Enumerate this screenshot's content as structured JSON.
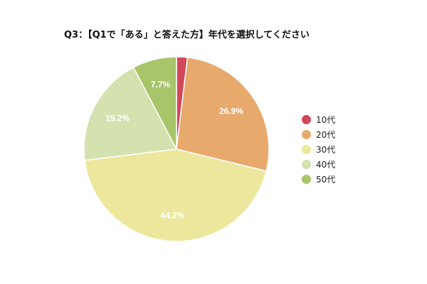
{
  "chart_data": {
    "type": "pie",
    "title": "Q3：【Q1で「ある」と答えた方】年代を選択してください",
    "categories": [
      "10代",
      "20代",
      "30代",
      "40代",
      "50代"
    ],
    "values": [
      1.9,
      26.9,
      44.2,
      19.2,
      7.7
    ],
    "value_labels": [
      "",
      "26.9%",
      "44.2%",
      "19.2%",
      "7.7%"
    ],
    "colors": [
      "#d0485a",
      "#e8a96c",
      "#ede79e",
      "#d3e2af",
      "#a9c56a"
    ],
    "legend_position": "right"
  }
}
